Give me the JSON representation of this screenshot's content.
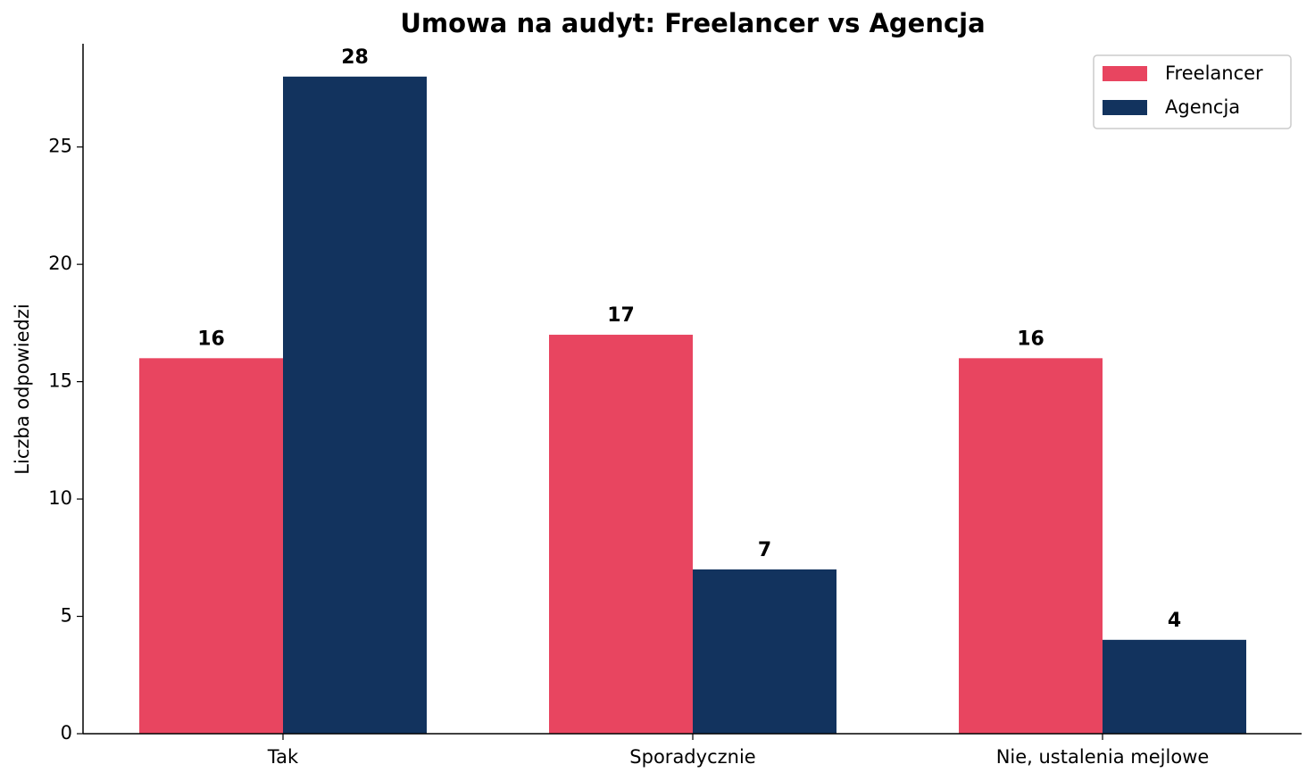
{
  "chart_data": {
    "type": "bar",
    "title": "Umowa na audyt: Freelancer vs Agencja",
    "y_label": "Liczba odpowiedzi",
    "categories": [
      "Tak",
      "Sporadycznie",
      "Nie, ustalenia mejlowe"
    ],
    "series": [
      {
        "name": "Freelancer",
        "color": "#e84560",
        "values": [
          16,
          17,
          16
        ]
      },
      {
        "name": "Agencja",
        "color": "#12335e",
        "values": [
          28,
          7,
          4
        ]
      }
    ],
    "ylim": [
      0,
      29.4
    ],
    "yticks": [
      0,
      5,
      10,
      15,
      20,
      25
    ],
    "grid": false,
    "legend": "upper right"
  }
}
